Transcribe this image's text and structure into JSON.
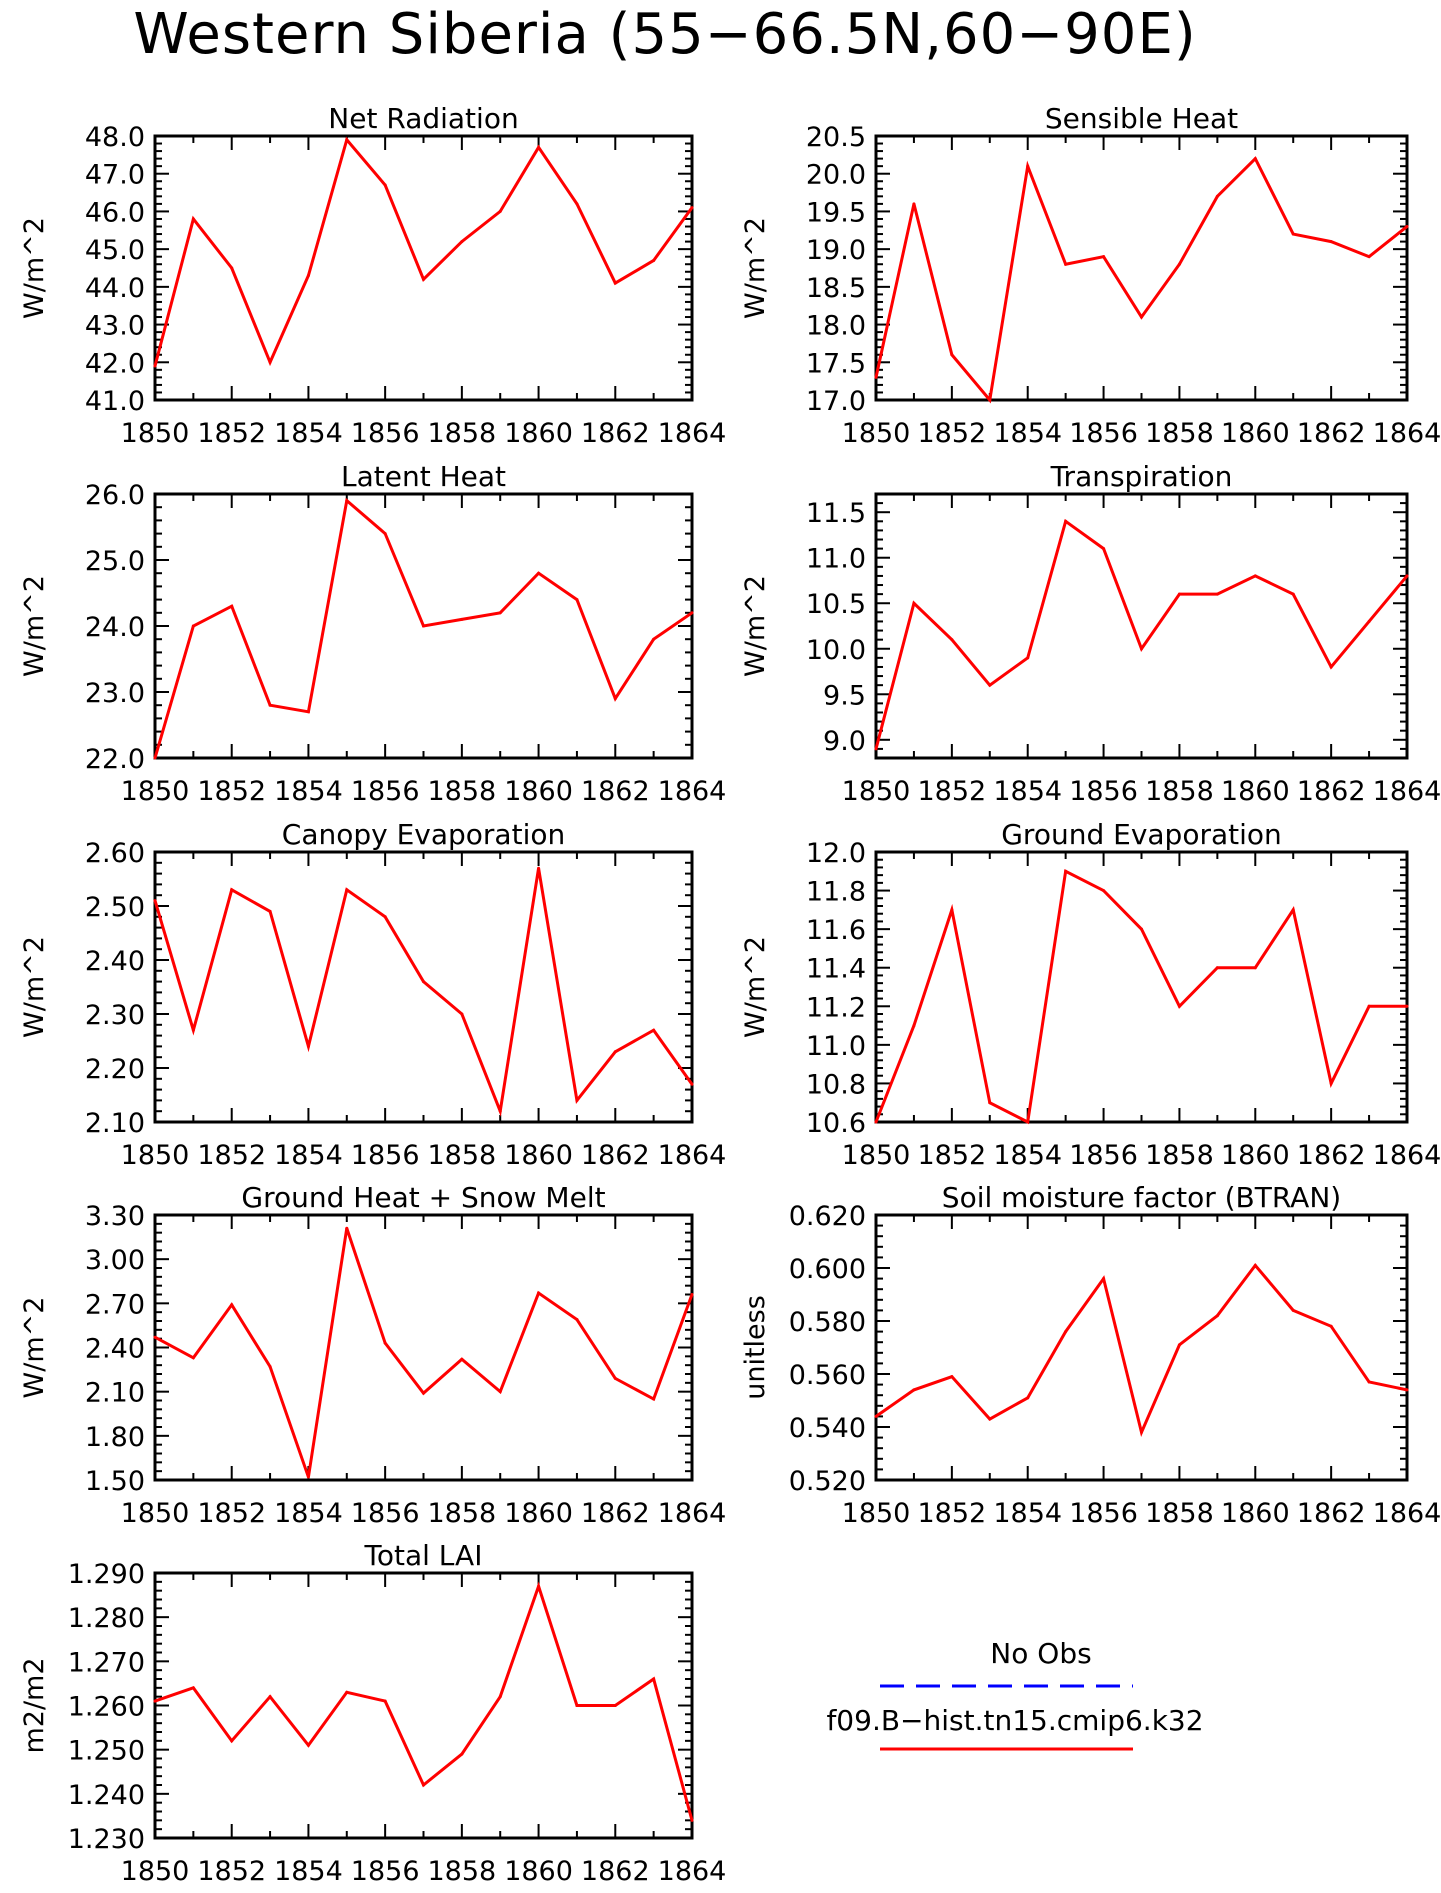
{
  "title": "Western Siberia (55−66.5N,60−90E)",
  "line_color": "#ff0000",
  "obs_color": "#0000ff",
  "legend": {
    "obs_label": "No Obs",
    "model_label": "f09.B−hist.tn15.cmip6.k32"
  },
  "chart_data": [
    {
      "type": "line",
      "title": "Net Radiation",
      "ylabel": "W/m^2",
      "xlim": [
        1850,
        1864
      ],
      "ylim": [
        41.0,
        48.0
      ],
      "xticks": [
        "1850",
        "1852",
        "1854",
        "1856",
        "1858",
        "1860",
        "1862",
        "1864"
      ],
      "yticks": [
        "41.0",
        "42.0",
        "43.0",
        "44.0",
        "45.0",
        "46.0",
        "47.0",
        "48.0"
      ],
      "x": [
        1850,
        1851,
        1852,
        1853,
        1854,
        1855,
        1856,
        1857,
        1858,
        1859,
        1860,
        1861,
        1862,
        1863,
        1864
      ],
      "series": [
        {
          "values": [
            41.9,
            45.8,
            44.5,
            42.0,
            44.3,
            47.9,
            46.7,
            44.2,
            45.2,
            46.0,
            47.7,
            46.2,
            44.1,
            44.7,
            46.1
          ]
        }
      ]
    },
    {
      "type": "line",
      "title": "Sensible Heat",
      "ylabel": "W/m^2",
      "xlim": [
        1850,
        1864
      ],
      "ylim": [
        17.0,
        20.5
      ],
      "xticks": [
        "1850",
        "1852",
        "1854",
        "1856",
        "1858",
        "1860",
        "1862",
        "1864"
      ],
      "yticks": [
        "17.0",
        "17.5",
        "18.0",
        "18.5",
        "19.0",
        "19.5",
        "20.0",
        "20.5"
      ],
      "x": [
        1850,
        1851,
        1852,
        1853,
        1854,
        1855,
        1856,
        1857,
        1858,
        1859,
        1860,
        1861,
        1862,
        1863,
        1864
      ],
      "series": [
        {
          "values": [
            17.3,
            19.6,
            17.6,
            17.0,
            20.1,
            18.8,
            18.9,
            18.1,
            18.8,
            19.7,
            20.2,
            19.2,
            19.1,
            18.9,
            19.3
          ]
        }
      ]
    },
    {
      "type": "line",
      "title": "Latent Heat",
      "ylabel": "W/m^2",
      "xlim": [
        1850,
        1864
      ],
      "ylim": [
        22.0,
        26.0
      ],
      "xticks": [
        "1850",
        "1852",
        "1854",
        "1856",
        "1858",
        "1860",
        "1862",
        "1864"
      ],
      "yticks": [
        "22.0",
        "23.0",
        "24.0",
        "25.0",
        "26.0"
      ],
      "x": [
        1850,
        1851,
        1852,
        1853,
        1854,
        1855,
        1856,
        1857,
        1858,
        1859,
        1860,
        1861,
        1862,
        1863,
        1864
      ],
      "series": [
        {
          "values": [
            22.0,
            24.0,
            24.3,
            22.8,
            22.7,
            25.9,
            25.4,
            24.0,
            24.1,
            24.2,
            24.8,
            24.4,
            22.9,
            23.8,
            24.2
          ]
        }
      ]
    },
    {
      "type": "line",
      "title": "Transpiration",
      "ylabel": "W/m^2",
      "xlim": [
        1850,
        1864
      ],
      "ylim": [
        8.8,
        11.7
      ],
      "xticks": [
        "1850",
        "1852",
        "1854",
        "1856",
        "1858",
        "1860",
        "1862",
        "1864"
      ],
      "yticks": [
        "9.0",
        "9.5",
        "10.0",
        "10.5",
        "11.0",
        "11.5"
      ],
      "x": [
        1850,
        1851,
        1852,
        1853,
        1854,
        1855,
        1856,
        1857,
        1858,
        1859,
        1860,
        1861,
        1862,
        1863,
        1864
      ],
      "series": [
        {
          "values": [
            8.9,
            10.5,
            10.1,
            9.6,
            9.9,
            11.4,
            11.1,
            10.0,
            10.6,
            10.6,
            10.8,
            10.6,
            9.8,
            10.3,
            10.8
          ]
        }
      ]
    },
    {
      "type": "line",
      "title": "Canopy Evaporation",
      "ylabel": "W/m^2",
      "xlim": [
        1850,
        1864
      ],
      "ylim": [
        2.1,
        2.6
      ],
      "xticks": [
        "1850",
        "1852",
        "1854",
        "1856",
        "1858",
        "1860",
        "1862",
        "1864"
      ],
      "yticks": [
        "2.10",
        "2.20",
        "2.30",
        "2.40",
        "2.50",
        "2.60"
      ],
      "x": [
        1850,
        1851,
        1852,
        1853,
        1854,
        1855,
        1856,
        1857,
        1858,
        1859,
        1860,
        1861,
        1862,
        1863,
        1864
      ],
      "series": [
        {
          "values": [
            2.51,
            2.27,
            2.53,
            2.49,
            2.24,
            2.53,
            2.48,
            2.36,
            2.3,
            2.12,
            2.57,
            2.14,
            2.23,
            2.27,
            2.17
          ]
        }
      ]
    },
    {
      "type": "line",
      "title": "Ground Evaporation",
      "ylabel": "W/m^2",
      "xlim": [
        1850,
        1864
      ],
      "ylim": [
        10.6,
        12.0
      ],
      "xticks": [
        "1850",
        "1852",
        "1854",
        "1856",
        "1858",
        "1860",
        "1862",
        "1864"
      ],
      "yticks": [
        "10.6",
        "10.8",
        "11.0",
        "11.2",
        "11.4",
        "11.6",
        "11.8",
        "12.0"
      ],
      "x": [
        1850,
        1851,
        1852,
        1853,
        1854,
        1855,
        1856,
        1857,
        1858,
        1859,
        1860,
        1861,
        1862,
        1863,
        1864
      ],
      "series": [
        {
          "values": [
            10.6,
            11.1,
            11.7,
            10.7,
            10.6,
            11.9,
            11.8,
            11.6,
            11.2,
            11.4,
            11.4,
            11.7,
            10.8,
            11.2,
            11.2
          ]
        }
      ]
    },
    {
      "type": "line",
      "title": "Ground Heat + Snow Melt",
      "ylabel": "W/m^2",
      "xlim": [
        1850,
        1864
      ],
      "ylim": [
        1.5,
        3.3
      ],
      "xticks": [
        "1850",
        "1852",
        "1854",
        "1856",
        "1858",
        "1860",
        "1862",
        "1864"
      ],
      "yticks": [
        "1.50",
        "1.80",
        "2.10",
        "2.40",
        "2.70",
        "3.00",
        "3.30"
      ],
      "x": [
        1850,
        1851,
        1852,
        1853,
        1854,
        1855,
        1856,
        1857,
        1858,
        1859,
        1860,
        1861,
        1862,
        1863,
        1864
      ],
      "series": [
        {
          "values": [
            2.47,
            2.33,
            2.69,
            2.27,
            1.52,
            3.21,
            2.43,
            2.09,
            2.32,
            2.1,
            2.77,
            2.59,
            2.19,
            2.05,
            2.76
          ]
        }
      ]
    },
    {
      "type": "line",
      "title": "Soil moisture factor (BTRAN)",
      "ylabel": "unitless",
      "xlim": [
        1850,
        1864
      ],
      "ylim": [
        0.52,
        0.62
      ],
      "xticks": [
        "1850",
        "1852",
        "1854",
        "1856",
        "1858",
        "1860",
        "1862",
        "1864"
      ],
      "yticks": [
        "0.520",
        "0.540",
        "0.560",
        "0.580",
        "0.600",
        "0.620"
      ],
      "x": [
        1850,
        1851,
        1852,
        1853,
        1854,
        1855,
        1856,
        1857,
        1858,
        1859,
        1860,
        1861,
        1862,
        1863,
        1864
      ],
      "series": [
        {
          "values": [
            0.544,
            0.554,
            0.559,
            0.543,
            0.551,
            0.576,
            0.596,
            0.538,
            0.571,
            0.582,
            0.601,
            0.584,
            0.578,
            0.557,
            0.554
          ]
        }
      ]
    },
    {
      "type": "line",
      "title": "Total LAI",
      "ylabel": "m2/m2",
      "xlim": [
        1850,
        1864
      ],
      "ylim": [
        1.23,
        1.29
      ],
      "xticks": [
        "1850",
        "1852",
        "1854",
        "1856",
        "1858",
        "1860",
        "1862",
        "1864"
      ],
      "yticks": [
        "1.230",
        "1.240",
        "1.250",
        "1.260",
        "1.270",
        "1.280",
        "1.290"
      ],
      "x": [
        1850,
        1851,
        1852,
        1853,
        1854,
        1855,
        1856,
        1857,
        1858,
        1859,
        1860,
        1861,
        1862,
        1863,
        1864
      ],
      "series": [
        {
          "values": [
            1.261,
            1.264,
            1.252,
            1.262,
            1.251,
            1.263,
            1.261,
            1.242,
            1.249,
            1.262,
            1.287,
            1.26,
            1.26,
            1.266,
            1.234
          ]
        }
      ]
    }
  ]
}
